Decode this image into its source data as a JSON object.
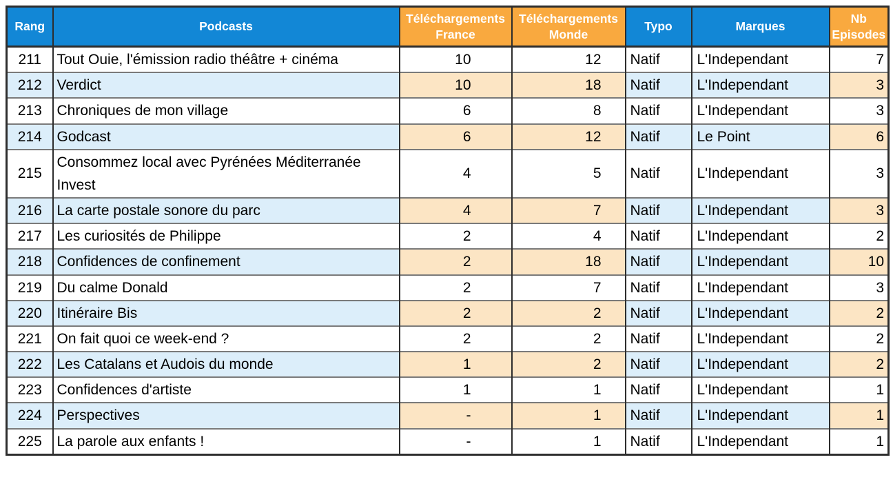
{
  "colors": {
    "header_blue": "#1287D6",
    "header_orange": "#F9A93F",
    "alt_row_blue": "#DCEEFA",
    "alt_row_orange": "#FCE5C4",
    "border_dark": "#2d2d2d",
    "row_separator_gray": "#7a7a7a",
    "header_text": "#ffffff",
    "body_text": "#000000"
  },
  "table": {
    "columns": [
      {
        "key": "rang",
        "label": "Rang",
        "header_bg": "blue"
      },
      {
        "key": "podcast",
        "label": "Podcasts",
        "header_bg": "blue"
      },
      {
        "key": "fr",
        "label": "Téléchargements France",
        "header_bg": "orange"
      },
      {
        "key": "monde",
        "label": "Téléchargements Monde",
        "header_bg": "orange"
      },
      {
        "key": "typo",
        "label": "Typo",
        "header_bg": "blue"
      },
      {
        "key": "marque",
        "label": "Marques",
        "header_bg": "blue"
      },
      {
        "key": "nb",
        "label": "Nb Episodes",
        "header_bg": "orange"
      }
    ],
    "rows": [
      {
        "rang": "211",
        "podcast": "Tout Ouie, l'émission radio théâtre + cinéma",
        "fr": "10",
        "monde": "12",
        "typo": "Natif",
        "marque": "L'Independant",
        "nb": "7"
      },
      {
        "rang": "212",
        "podcast": "Verdict",
        "fr": "10",
        "monde": "18",
        "typo": "Natif",
        "marque": "L'Independant",
        "nb": "3"
      },
      {
        "rang": "213",
        "podcast": "Chroniques de mon village",
        "fr": "6",
        "monde": "8",
        "typo": "Natif",
        "marque": "L'Independant",
        "nb": "3"
      },
      {
        "rang": "214",
        "podcast": "Godcast",
        "fr": "6",
        "monde": "12",
        "typo": "Natif",
        "marque": "Le Point",
        "nb": "6"
      },
      {
        "rang": "215",
        "podcast": "Consommez local avec Pyrénées Méditerranée Invest",
        "fr": "4",
        "monde": "5",
        "typo": "Natif",
        "marque": "L'Independant",
        "nb": "3"
      },
      {
        "rang": "216",
        "podcast": "La carte postale sonore du parc",
        "fr": "4",
        "monde": "7",
        "typo": "Natif",
        "marque": "L'Independant",
        "nb": "3"
      },
      {
        "rang": "217",
        "podcast": "Les curiosités de Philippe",
        "fr": "2",
        "monde": "4",
        "typo": "Natif",
        "marque": "L'Independant",
        "nb": "2"
      },
      {
        "rang": "218",
        "podcast": "Confidences de confinement",
        "fr": "2",
        "monde": "18",
        "typo": "Natif",
        "marque": "L'Independant",
        "nb": "10"
      },
      {
        "rang": "219",
        "podcast": "Du calme Donald",
        "fr": "2",
        "monde": "7",
        "typo": "Natif",
        "marque": "L'Independant",
        "nb": "3"
      },
      {
        "rang": "220",
        "podcast": "Itinéraire Bis",
        "fr": "2",
        "monde": "2",
        "typo": "Natif",
        "marque": "L'Independant",
        "nb": "2"
      },
      {
        "rang": "221",
        "podcast": "On fait quoi ce week-end ?",
        "fr": "2",
        "monde": "2",
        "typo": "Natif",
        "marque": "L'Independant",
        "nb": "2"
      },
      {
        "rang": "222",
        "podcast": "Les Catalans et Audois du monde",
        "fr": "1",
        "monde": "2",
        "typo": "Natif",
        "marque": "L'Independant",
        "nb": "2"
      },
      {
        "rang": "223",
        "podcast": "Confidences d'artiste",
        "fr": "1",
        "monde": "1",
        "typo": "Natif",
        "marque": "L'Independant",
        "nb": "1"
      },
      {
        "rang": "224",
        "podcast": "Perspectives",
        "fr": "-",
        "monde": "1",
        "typo": "Natif",
        "marque": "L'Independant",
        "nb": "1"
      },
      {
        "rang": "225",
        "podcast": "La parole aux enfants !",
        "fr": "-",
        "monde": "1",
        "typo": "Natif",
        "marque": "L'Independant",
        "nb": "1"
      }
    ]
  }
}
